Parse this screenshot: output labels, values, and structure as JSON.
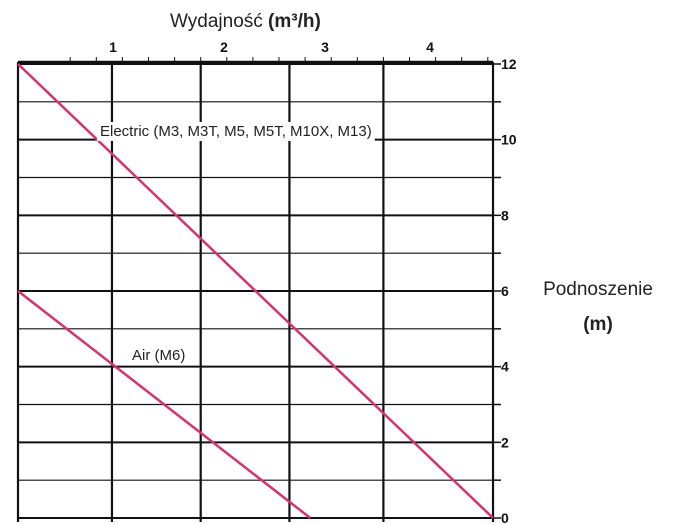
{
  "chart_data": {
    "type": "line",
    "title": "Wydajność",
    "title_unit": "(m³/h)",
    "ylabel": "Podnoszenie",
    "ylabel_unit": "(m)",
    "x_ticks": [
      1,
      2,
      3,
      4
    ],
    "y_ticks": [
      0,
      2,
      4,
      6,
      8,
      10,
      12
    ],
    "xlim": [
      0,
      4.55
    ],
    "ylim": [
      0,
      12.2
    ],
    "grid": true,
    "x_axis_position": "top",
    "y_axis_position": "right",
    "series": [
      {
        "name": "Electric (M3, M3T, M5, M5T, M10X, M13)",
        "x": [
          0,
          4.55
        ],
        "y": [
          12,
          0
        ]
      },
      {
        "name": "Air (M6)",
        "x": [
          0,
          2.8
        ],
        "y": [
          6,
          0
        ]
      }
    ],
    "colors": {
      "series": "#d8326a",
      "grid": "#111111"
    }
  }
}
